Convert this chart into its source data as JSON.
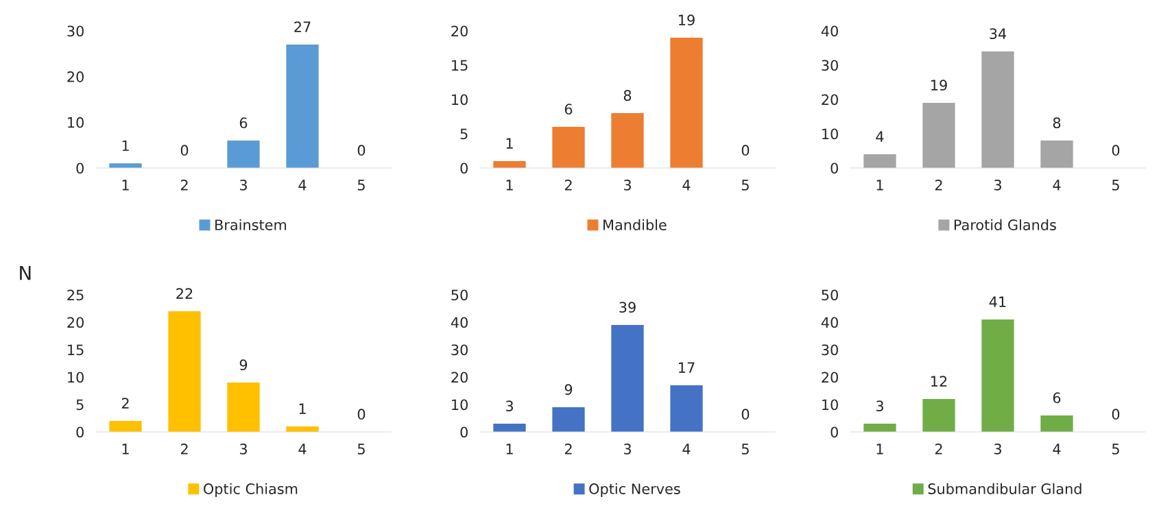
{
  "chart_data": [
    {
      "type": "bar",
      "categories": [
        "1",
        "2",
        "3",
        "4",
        "5"
      ],
      "series": [
        {
          "name": "Brainstem",
          "color": "#5b9bd5",
          "values": [
            1,
            0,
            6,
            27,
            0
          ]
        }
      ],
      "ylim": [
        0,
        30
      ],
      "yticks": [
        0,
        10,
        20,
        30
      ],
      "data_labels": true,
      "legend": "bottom",
      "grid": false
    },
    {
      "type": "bar",
      "categories": [
        "1",
        "2",
        "3",
        "4",
        "5"
      ],
      "series": [
        {
          "name": "Mandible",
          "color": "#ed7d31",
          "values": [
            1,
            6,
            8,
            19,
            0
          ]
        }
      ],
      "ylim": [
        0,
        20
      ],
      "yticks": [
        0,
        5,
        10,
        15,
        20
      ],
      "data_labels": true,
      "legend": "bottom",
      "grid": false
    },
    {
      "type": "bar",
      "categories": [
        "1",
        "2",
        "3",
        "4",
        "5"
      ],
      "series": [
        {
          "name": "Parotid Glands",
          "color": "#a5a5a5",
          "values": [
            4,
            19,
            34,
            8,
            0
          ]
        }
      ],
      "ylim": [
        0,
        40
      ],
      "yticks": [
        0,
        10,
        20,
        30,
        40
      ],
      "data_labels": true,
      "legend": "bottom",
      "grid": false
    },
    {
      "type": "bar",
      "ylabel": "N",
      "categories": [
        "1",
        "2",
        "3",
        "4",
        "5"
      ],
      "series": [
        {
          "name": "Optic Chiasm",
          "color": "#ffc000",
          "values": [
            2,
            22,
            9,
            1,
            0
          ]
        }
      ],
      "ylim": [
        0,
        25
      ],
      "yticks": [
        0,
        5,
        10,
        15,
        20,
        25
      ],
      "data_labels": true,
      "legend": "bottom",
      "grid": false
    },
    {
      "type": "bar",
      "categories": [
        "1",
        "2",
        "3",
        "4",
        "5"
      ],
      "series": [
        {
          "name": "Optic Nerves",
          "color": "#4472c4",
          "values": [
            3,
            9,
            39,
            17,
            0
          ]
        }
      ],
      "ylim": [
        0,
        50
      ],
      "yticks": [
        0,
        10,
        20,
        30,
        40,
        50
      ],
      "data_labels": true,
      "legend": "bottom",
      "grid": false
    },
    {
      "type": "bar",
      "categories": [
        "1",
        "2",
        "3",
        "4",
        "5"
      ],
      "series": [
        {
          "name": "Submandibular Gland",
          "color": "#70ad47",
          "values": [
            3,
            12,
            41,
            6,
            0
          ]
        }
      ],
      "ylim": [
        0,
        50
      ],
      "yticks": [
        0,
        10,
        20,
        30,
        40,
        50
      ],
      "data_labels": true,
      "legend": "bottom",
      "grid": false
    }
  ]
}
